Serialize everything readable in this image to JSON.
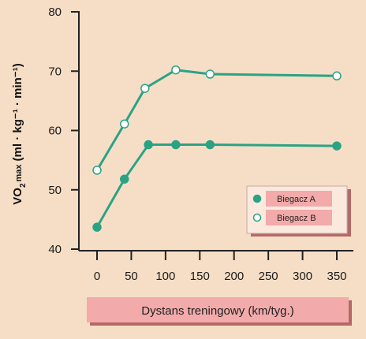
{
  "chart_data": {
    "type": "line",
    "xlabel": "Dystans treningowy (km/tyg.)",
    "ylabel": {
      "prefix": "VO",
      "sub": "2",
      "suffix": "max",
      "units": "(ml · kg⁻¹ · min⁻¹)"
    },
    "xlim": [
      0,
      350
    ],
    "ylim": [
      40,
      80
    ],
    "xticks": [
      "0",
      "50",
      "100",
      "150",
      "200",
      "250",
      "300",
      "350"
    ],
    "yticks": [
      "40",
      "50",
      "60",
      "70",
      "80"
    ],
    "series": [
      {
        "name": "Biegacz A",
        "marker": "filled",
        "x": [
          0,
          40,
          75,
          115,
          165,
          350
        ],
        "y": [
          43.7,
          51.8,
          57.6,
          57.6,
          57.6,
          57.4
        ]
      },
      {
        "name": "Biegacz B",
        "marker": "open",
        "x": [
          0,
          40,
          70,
          115,
          165,
          350
        ],
        "y": [
          53.3,
          61.1,
          67.1,
          70.2,
          69.5,
          69.2
        ]
      }
    ],
    "legend_position": "bottom-right",
    "grid": false
  },
  "colors": {
    "background": "#f6dec6",
    "line": "#2aa384",
    "marker_fill_a": "#2aa384",
    "marker_fill_b": "#ffffff",
    "axis": "#222222",
    "panel": "#f2aaaa",
    "panel_shadow": "#b36a66"
  }
}
